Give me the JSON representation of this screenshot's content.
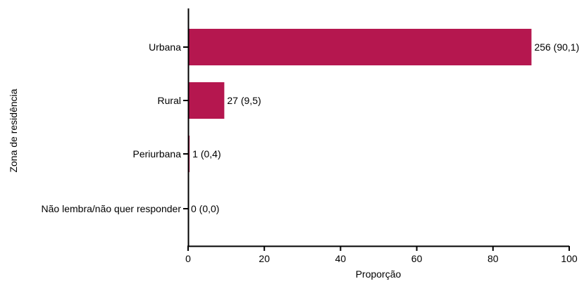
{
  "chart_data": {
    "type": "bar",
    "orientation": "horizontal",
    "categories": [
      "Urbana",
      "Rural",
      "Periurbana",
      "Não lembra/não quer responder"
    ],
    "values": [
      90.1,
      9.5,
      0.4,
      0.0
    ],
    "data_labels": [
      "256 (90,1)",
      "27 (9,5)",
      "1 (0,4)",
      "0 (0,0)"
    ],
    "xlabel": "Proporção",
    "ylabel": "Zona de residência",
    "xlim": [
      0,
      100
    ],
    "xticks": [
      0,
      20,
      40,
      60,
      80,
      100
    ],
    "bar_color": "#b5174f",
    "grid": false,
    "legend": false
  }
}
